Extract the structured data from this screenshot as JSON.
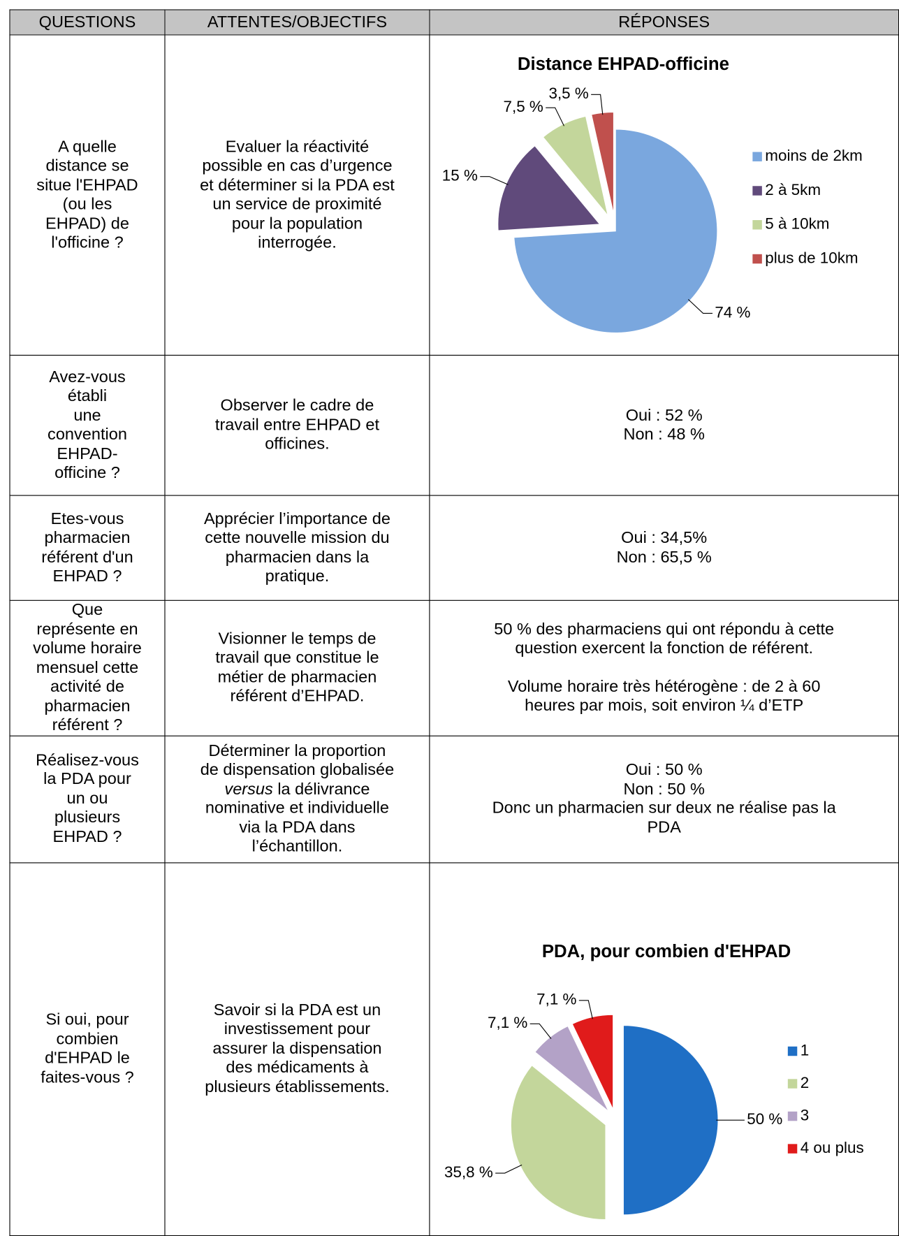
{
  "table": {
    "header": [
      "QUESTIONS",
      "ATTENTES/OBJECTIFS",
      "RÉPONSES"
    ],
    "rows": [
      {
        "question": [
          "A quelle",
          "distance se",
          "situe l'EHPAD",
          "(ou les",
          "EHPAD) de",
          "l'officine ?"
        ],
        "objective": [
          "Evaluer la réactivité",
          "possible en cas d’urgence",
          "et déterminer si la PDA est",
          "un service de proximité",
          "pour la population",
          "interrogée."
        ]
      },
      {
        "question": [
          "Avez-vous",
          "établi",
          "une",
          "convention",
          "EHPAD-",
          "officine ?"
        ],
        "objective": [
          "Observer le cadre de",
          "travail entre EHPAD et",
          "officines."
        ],
        "response": [
          "Oui : 52 %",
          "Non : 48 %"
        ]
      },
      {
        "question": [
          "Etes-vous",
          "pharmacien",
          "référent d'un",
          "EHPAD ?"
        ],
        "objective": [
          "Apprécier l’importance de",
          "cette nouvelle mission du",
          "pharmacien dans la",
          "pratique."
        ],
        "response": [
          "Oui : 34,5%",
          "Non : 65,5 %"
        ]
      },
      {
        "question": [
          "Que",
          "représente en",
          "volume horaire",
          "mensuel cette",
          "activité de",
          "pharmacien",
          "référent ?"
        ],
        "objective": [
          "Visionner le temps de",
          "travail que constitue le",
          "métier de pharmacien",
          "référent d’EHPAD."
        ],
        "response_paragraphs": [
          [
            "50 % des pharmaciens qui ont répondu à cette",
            "question exercent la fonction de référent."
          ],
          [
            "Volume horaire très hétérogène : de 2 à 60",
            "heures par mois,  soit environ ¼ d’ETP"
          ]
        ]
      },
      {
        "question": [
          "Réalisez-vous",
          "la PDA pour",
          "un ou",
          "plusieurs",
          "EHPAD ?"
        ],
        "objective": [
          "Déterminer la proportion",
          "de dispensation globalisée",
          [
            {
              "text": "versus",
              "italic": true
            },
            {
              "text": " la délivrance"
            }
          ],
          "nominative et individuelle",
          "via la PDA dans",
          "l’échantillon."
        ],
        "response": [
          "Oui : 50 %",
          "Non : 50 %",
          "Donc un pharmacien sur deux ne réalise pas la",
          "PDA"
        ]
      },
      {
        "question": [
          "Si oui, pour",
          "combien",
          "d'EHPAD le",
          "faites-vous ?"
        ],
        "objective": [
          "Savoir si la PDA est un",
          "investissement pour",
          "assurer la dispensation",
          "des médicaments à",
          "plusieurs établissements."
        ]
      }
    ]
  },
  "chart_data": [
    {
      "type": "pie",
      "title": "Distance EHPAD-officine",
      "categories": [
        "moins de 2km",
        "2 à 5km",
        "5 à 10km",
        "plus de 10km"
      ],
      "values": [
        74,
        15,
        7.5,
        3.5
      ],
      "value_labels": [
        "74 %",
        "15 %",
        "7,5 %",
        "3,5 %"
      ],
      "colors": [
        "#7aa7de",
        "#604a7b",
        "#c3d69b",
        "#c0504d"
      ],
      "legend": "right"
    },
    {
      "type": "pie",
      "title": "PDA, pour combien d'EHPAD",
      "categories": [
        "1",
        "2",
        "3",
        "4 ou plus"
      ],
      "values": [
        50,
        35.8,
        7.1,
        7.1
      ],
      "value_labels": [
        "50 %",
        "35,8 %",
        "7,1 %",
        "7,1 %"
      ],
      "colors": [
        "#1f6fc5",
        "#c3d69b",
        "#b3a2c7",
        "#e01b1b"
      ],
      "legend": "right"
    }
  ]
}
